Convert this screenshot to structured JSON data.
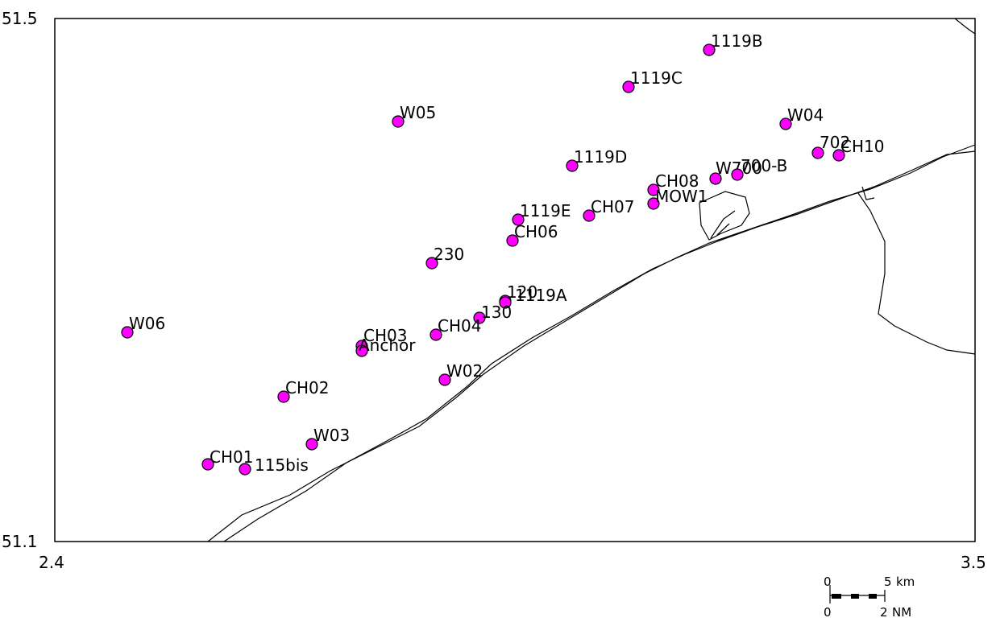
{
  "axes": {
    "lat_top": "51.5",
    "lat_bottom": "51.1",
    "lon_left": "2.4",
    "lon_right": "3.5"
  },
  "stations": [
    {
      "name": "1119B"
    },
    {
      "name": "1119C"
    },
    {
      "name": "W05"
    },
    {
      "name": "W04"
    },
    {
      "name": "702"
    },
    {
      "name": "CH10"
    },
    {
      "name": "1119D"
    },
    {
      "name": "W700"
    },
    {
      "name": "700-B"
    },
    {
      "name": "CH08"
    },
    {
      "name": "MOW1"
    },
    {
      "name": "CH07"
    },
    {
      "name": "1119E"
    },
    {
      "name": "CH06"
    },
    {
      "name": "230"
    },
    {
      "name": "120"
    },
    {
      "name": "1119A"
    },
    {
      "name": "130"
    },
    {
      "name": "CH04"
    },
    {
      "name": "CH03"
    },
    {
      "name": "Anchor"
    },
    {
      "name": "W06"
    },
    {
      "name": "W02"
    },
    {
      "name": "CH02"
    },
    {
      "name": "W03"
    },
    {
      "name": "CH01"
    },
    {
      "name": "115bis"
    }
  ],
  "scalebar": {
    "km_zero": "0",
    "km_value": "5",
    "km_unit": "km",
    "nm_zero": "0",
    "nm_value": "2",
    "nm_unit": "NM"
  },
  "colors": {
    "marker_fill": "#ff00ff",
    "marker_stroke": "#000000",
    "line": "#000000"
  }
}
